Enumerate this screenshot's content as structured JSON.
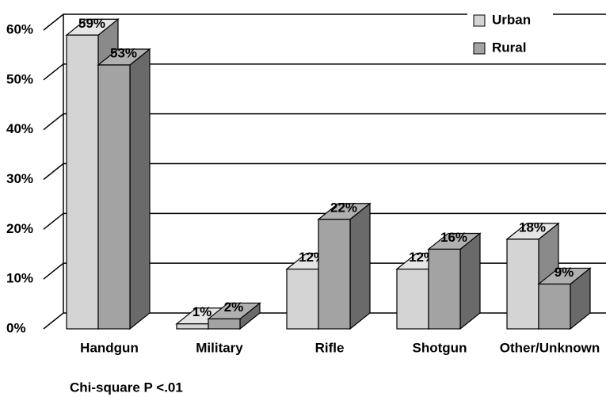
{
  "chart_data": {
    "type": "bar3d",
    "categories": [
      "Handgun",
      "Military",
      "Rifle",
      "Shotgun",
      "Other/Unknown"
    ],
    "series": [
      {
        "name": "Urban",
        "color": "#d4d4d4",
        "values": [
          59,
          1,
          12,
          12,
          18
        ],
        "value_labels": [
          "59%",
          "1%",
          "12%",
          "12%",
          "18%"
        ]
      },
      {
        "name": "Rural",
        "color": "#a3a3a3",
        "values": [
          53,
          2,
          22,
          16,
          9
        ],
        "value_labels": [
          "53%",
          "2%",
          "22%",
          "16%",
          "9%"
        ]
      }
    ],
    "ylim": [
      0,
      60
    ],
    "yticks": [
      {
        "value": 0,
        "label": "0%"
      },
      {
        "value": 10,
        "label": "10%"
      },
      {
        "value": 20,
        "label": "20%"
      },
      {
        "value": 30,
        "label": "30%"
      },
      {
        "value": 40,
        "label": "40%"
      },
      {
        "value": 50,
        "label": "50%"
      },
      {
        "value": 60,
        "label": "60%"
      }
    ],
    "grid": true,
    "legend": "top-right",
    "footnote": "Chi-square P <.01"
  }
}
